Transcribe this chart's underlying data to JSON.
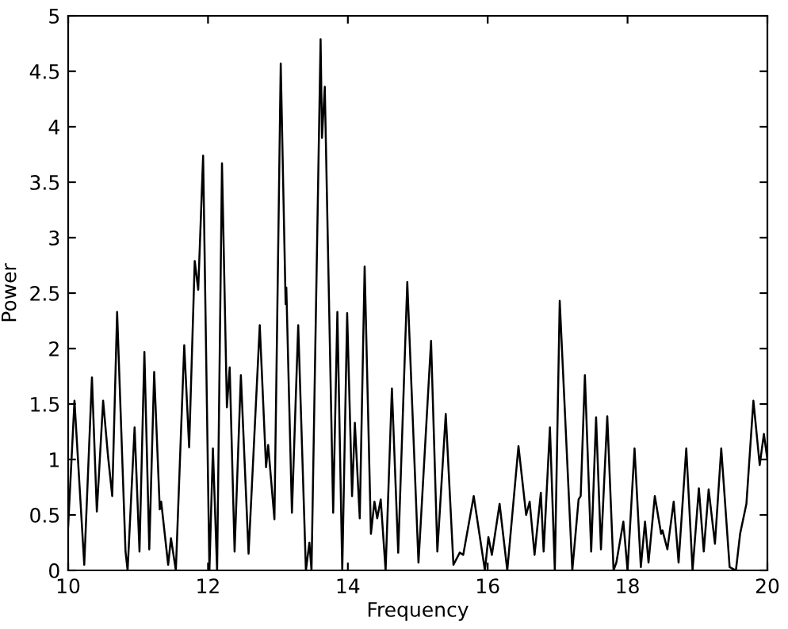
{
  "chart_data": {
    "type": "line",
    "xlabel": "Frequency",
    "ylabel": "Power",
    "xlim": [
      10,
      20
    ],
    "ylim": [
      0,
      5
    ],
    "xticks": [
      10,
      12,
      14,
      16,
      18,
      20
    ],
    "yticks": [
      0,
      0.5,
      1,
      1.5,
      2,
      2.5,
      3,
      3.5,
      4,
      4.5,
      5
    ],
    "grid": false,
    "line_style": "solid",
    "marker": "none",
    "series": [
      {
        "color": "#000000",
        "x": [
          10.0,
          10.09,
          10.23,
          10.34,
          10.41,
          10.5,
          10.57,
          10.63,
          10.7,
          10.82,
          10.85,
          10.95,
          11.02,
          11.09,
          11.16,
          11.23,
          11.31,
          11.33,
          11.43,
          11.47,
          11.54,
          11.66,
          11.73,
          11.81,
          11.86,
          11.93,
          12.02,
          12.07,
          12.13,
          12.2,
          12.27,
          12.31,
          12.38,
          12.47,
          12.58,
          12.74,
          12.83,
          12.86,
          12.95,
          13.04,
          13.11,
          13.12,
          13.2,
          13.29,
          13.4,
          13.45,
          13.48,
          13.61,
          13.63,
          13.67,
          13.79,
          13.85,
          13.92,
          13.99,
          14.06,
          14.1,
          14.17,
          14.24,
          14.33,
          14.38,
          14.42,
          14.47,
          14.54,
          14.63,
          14.72,
          14.85,
          15.01,
          15.19,
          15.28,
          15.4,
          15.51,
          15.6,
          15.65,
          15.8,
          15.96,
          16.01,
          16.06,
          16.17,
          16.28,
          16.44,
          16.55,
          16.6,
          16.67,
          16.76,
          16.8,
          16.89,
          16.96,
          17.03,
          17.21,
          17.3,
          17.33,
          17.39,
          17.48,
          17.55,
          17.62,
          17.71,
          17.8,
          17.84,
          17.94,
          18.0,
          18.1,
          18.19,
          18.25,
          18.3,
          18.39,
          18.48,
          18.5,
          18.57,
          18.66,
          18.73,
          18.84,
          18.93,
          19.02,
          19.09,
          19.16,
          19.25,
          19.34,
          19.46,
          19.55,
          19.61,
          19.7,
          19.8,
          19.89,
          19.95,
          20.0
        ],
        "values": [
          0.4,
          1.53,
          0.05,
          1.74,
          0.53,
          1.53,
          1.03,
          0.67,
          2.33,
          0.17,
          0.0,
          1.29,
          0.17,
          1.97,
          0.19,
          1.79,
          0.55,
          0.62,
          0.05,
          0.29,
          0.0,
          2.03,
          1.11,
          2.79,
          2.53,
          3.74,
          0.0,
          1.1,
          0.0,
          3.67,
          1.47,
          1.83,
          0.17,
          1.76,
          0.15,
          2.21,
          0.93,
          1.13,
          0.46,
          4.57,
          2.4,
          2.55,
          0.52,
          2.21,
          0.0,
          0.25,
          0.0,
          4.79,
          3.9,
          4.36,
          0.52,
          2.33,
          0.0,
          2.32,
          0.67,
          1.33,
          0.47,
          2.74,
          0.33,
          0.62,
          0.47,
          0.64,
          0.0,
          1.64,
          0.16,
          2.6,
          0.07,
          2.07,
          0.17,
          1.41,
          0.05,
          0.16,
          0.14,
          0.67,
          0.0,
          0.3,
          0.14,
          0.6,
          0.0,
          1.12,
          0.5,
          0.62,
          0.14,
          0.7,
          0.17,
          1.29,
          0.0,
          2.43,
          0.0,
          0.64,
          0.67,
          1.76,
          0.17,
          1.38,
          0.19,
          1.39,
          0.0,
          0.07,
          0.44,
          0.0,
          1.1,
          0.03,
          0.44,
          0.07,
          0.67,
          0.33,
          0.36,
          0.19,
          0.62,
          0.07,
          1.1,
          0.0,
          0.74,
          0.17,
          0.73,
          0.24,
          1.1,
          0.03,
          0.0,
          0.33,
          0.6,
          1.53,
          0.95,
          1.23,
          1.0
        ]
      }
    ]
  }
}
